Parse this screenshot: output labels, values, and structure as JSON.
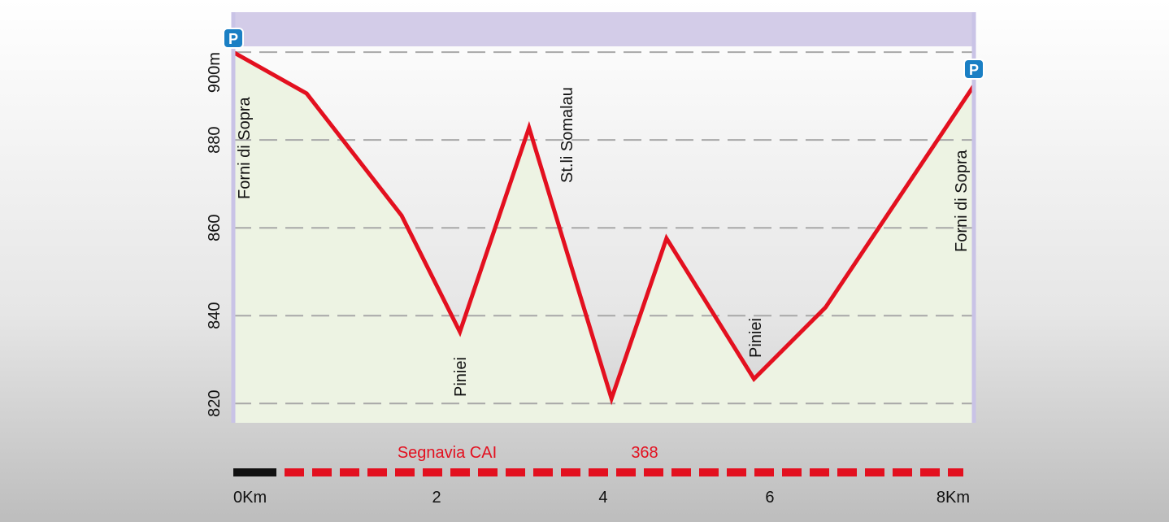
{
  "chart_data": {
    "type": "line",
    "x": [
      -0.44,
      0.44,
      1.58,
      2.28,
      3.11,
      4.1,
      4.76,
      5.81,
      6.67,
      8.45
    ],
    "series": [
      {
        "color": "#e3101f",
        "values": [
          900,
          890.6,
          862.8,
          836.3,
          882.8,
          821.1,
          857.6,
          825.6,
          841.9,
          892.4
        ]
      }
    ],
    "xlim": [
      -0.44,
      8.45
    ],
    "xticks": [
      {
        "value": 0,
        "label": "0Km"
      },
      2,
      4,
      6,
      {
        "value": 8,
        "label": "8Km"
      }
    ],
    "ylim": [
      815.6,
      909.1
    ],
    "yticks": [
      820,
      840,
      860,
      880,
      {
        "value": 900,
        "label": "900m"
      }
    ],
    "grid": true,
    "annotations": [
      "Forni di Sopra",
      "St.li Somalau",
      "Piniei",
      "Piniei",
      "Forni di Sopra"
    ],
    "trail_label": "Segnavia CAI",
    "trail_number": "368"
  }
}
